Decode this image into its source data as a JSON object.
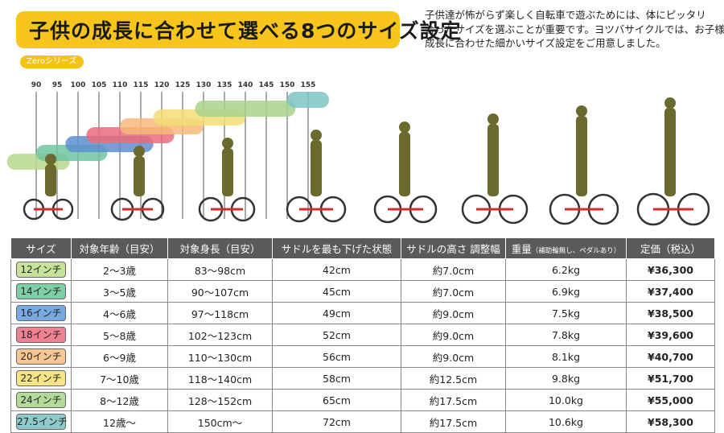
{
  "title": "子供の成長に合わせて選べる8つのサイズ設定",
  "description": [
    "子供達が怖がらず楽しく自転車で遊ぶためには、体にピッタリ",
    "合ったサイズを選ぶことが重要です。ヨツバサイクルでは、お子様の",
    "成長に合わせた細かいサイズ設定をご用意しました。"
  ],
  "series_label": "Zeroシリーズ",
  "scale_ticks": [
    "90",
    "95",
    "100",
    "105",
    "110",
    "115",
    "120",
    "125",
    "130",
    "135",
    "140",
    "145",
    "150",
    "155"
  ],
  "height_bands": [
    {
      "size": "12インチ",
      "from_cm": 83,
      "to_cm": 98,
      "color": "#b9d98e"
    },
    {
      "size": "14インチ",
      "from_cm": 90,
      "to_cm": 107,
      "color": "#6fc4a0"
    },
    {
      "size": "16インチ",
      "from_cm": 97,
      "to_cm": 118,
      "color": "#5b8fd0"
    },
    {
      "size": "18インチ",
      "from_cm": 102,
      "to_cm": 123,
      "color": "#ea6b7b"
    },
    {
      "size": "20インチ",
      "from_cm": 110,
      "to_cm": 130,
      "color": "#f6b97a"
    },
    {
      "size": "22インチ",
      "from_cm": 118,
      "to_cm": 140,
      "color": "#f3dd74"
    },
    {
      "size": "24インチ",
      "from_cm": 128,
      "to_cm": 152,
      "color": "#a8d28c"
    },
    {
      "size": "27.5インチ",
      "from_cm": 150,
      "to_cm": 160,
      "color": "#7fc3c4"
    }
  ],
  "colors": {
    "band_title": "#f7c51b",
    "silhouette": "#6b6a2e",
    "bike_frame": "#d42d2d",
    "header_bg": "#5a5a5a"
  },
  "table": {
    "headers": [
      "サイズ",
      "対象年齢（目安）",
      "対象身長（目安）",
      "サドルを最も下げた状態",
      "サドルの高さ 調整幅",
      "重量",
      "定価（税込）"
    ],
    "weight_note": "（補助輪無し、ペダルあり）",
    "rows": [
      {
        "size": "12インチ",
        "color": "#c6e39a",
        "age": "2～3歳",
        "height": "83～98cm",
        "saddle_min": "42cm",
        "adjust": "約7.0cm",
        "weight": "6.2kg",
        "price": "¥36,300"
      },
      {
        "size": "14インチ",
        "color": "#7ecfa6",
        "age": "3～5歳",
        "height": "90～107cm",
        "saddle_min": "45cm",
        "adjust": "約7.0cm",
        "weight": "6.9kg",
        "price": "¥37,400"
      },
      {
        "size": "16インチ",
        "color": "#78a9e0",
        "age": "4～6歳",
        "height": "97～118cm",
        "saddle_min": "49cm",
        "adjust": "約9.0cm",
        "weight": "7.5kg",
        "price": "¥38,500"
      },
      {
        "size": "18インチ",
        "color": "#ee8292",
        "age": "5～8歳",
        "height": "102～123cm",
        "saddle_min": "52cm",
        "adjust": "約9.0cm",
        "weight": "7.8kg",
        "price": "¥39,600"
      },
      {
        "size": "20インチ",
        "color": "#f8c594",
        "age": "6～9歳",
        "height": "110～130cm",
        "saddle_min": "56cm",
        "adjust": "約9.0cm",
        "weight": "8.1kg",
        "price": "¥40,700"
      },
      {
        "size": "22インチ",
        "color": "#f6e487",
        "age": "7～10歳",
        "height": "118～140cm",
        "saddle_min": "58cm",
        "adjust": "約12.5cm",
        "weight": "9.8kg",
        "price": "¥51,700"
      },
      {
        "size": "24インチ",
        "color": "#b3da9a",
        "age": "8～12歳",
        "height": "128～152cm",
        "saddle_min": "65cm",
        "adjust": "約17.5cm",
        "weight": "10.0kg",
        "price": "¥55,000"
      },
      {
        "size": "27.5インチ",
        "color": "#8ecaca",
        "age": "12歳～",
        "height": "150cm～",
        "saddle_min": "72cm",
        "adjust": "約17.5cm",
        "weight": "10.6kg",
        "price": "¥58,300"
      }
    ]
  }
}
